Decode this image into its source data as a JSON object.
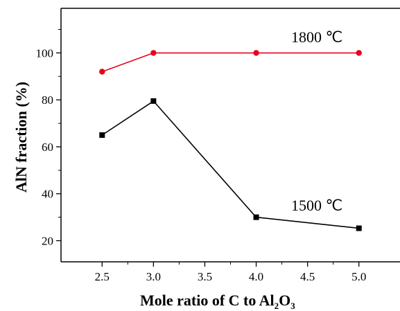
{
  "chart_data": {
    "type": "line",
    "title": "",
    "xlabel": "Mole ratio of C to Al",
    "xlabel_sub": "2",
    "xlabel_tail": "O",
    "xlabel_sub2": "3",
    "ylabel": "AlN fraction (%)",
    "xlim": [
      2.1,
      5.4
    ],
    "ylim": [
      11,
      119
    ],
    "xticks": [
      2.5,
      3.0,
      3.5,
      4.0,
      4.5,
      5.0
    ],
    "xtick_labels": [
      "2.5",
      "3.0",
      "3.5",
      "4.0",
      "4.5",
      "5.0"
    ],
    "yticks": [
      20,
      40,
      60,
      80,
      100
    ],
    "ytick_labels": [
      "20",
      "40",
      "60",
      "80",
      "100"
    ],
    "grid": false,
    "series": [
      {
        "name": "1800 ℃",
        "x": [
          2.5,
          3.0,
          4.0,
          5.0
        ],
        "y": [
          92,
          100,
          100,
          100
        ],
        "color": "#e8001c",
        "marker": "circle"
      },
      {
        "name": "1500 ℃",
        "x": [
          2.5,
          3.0,
          4.0,
          5.0
        ],
        "y": [
          65,
          79.5,
          30,
          25.3
        ],
        "color": "#000000",
        "marker": "square"
      }
    ]
  }
}
